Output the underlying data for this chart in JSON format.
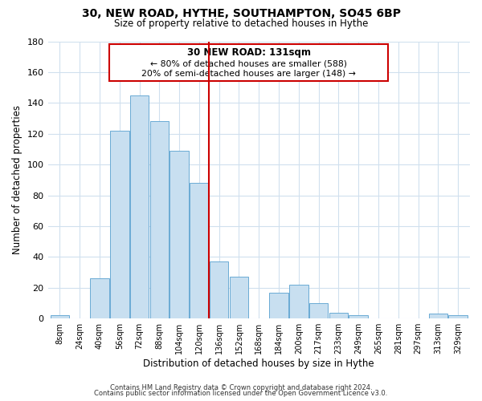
{
  "title": "30, NEW ROAD, HYTHE, SOUTHAMPTON, SO45 6BP",
  "subtitle": "Size of property relative to detached houses in Hythe",
  "xlabel": "Distribution of detached houses by size in Hythe",
  "ylabel": "Number of detached properties",
  "bar_color": "#c8dff0",
  "bar_edge_color": "#6aaad4",
  "grid_color": "#d0e0ee",
  "categories": [
    "8sqm",
    "24sqm",
    "40sqm",
    "56sqm",
    "72sqm",
    "88sqm",
    "104sqm",
    "120sqm",
    "136sqm",
    "152sqm",
    "168sqm",
    "184sqm",
    "200sqm",
    "217sqm",
    "233sqm",
    "249sqm",
    "265sqm",
    "281sqm",
    "297sqm",
    "313sqm",
    "329sqm"
  ],
  "values": [
    2,
    0,
    26,
    122,
    145,
    128,
    109,
    88,
    37,
    27,
    0,
    17,
    22,
    10,
    4,
    2,
    0,
    0,
    0,
    3,
    2
  ],
  "ylim": [
    0,
    180
  ],
  "yticks": [
    0,
    20,
    40,
    60,
    80,
    100,
    120,
    140,
    160,
    180
  ],
  "vline_x_idx": 8,
  "vline_color": "#cc0000",
  "annotation_title": "30 NEW ROAD: 131sqm",
  "annotation_line1": "← 80% of detached houses are smaller (588)",
  "annotation_line2": "20% of semi-detached houses are larger (148) →",
  "annotation_box_color": "#ffffff",
  "annotation_box_edge": "#cc0000",
  "footer1": "Contains HM Land Registry data © Crown copyright and database right 2024.",
  "footer2": "Contains public sector information licensed under the Open Government Licence v3.0."
}
